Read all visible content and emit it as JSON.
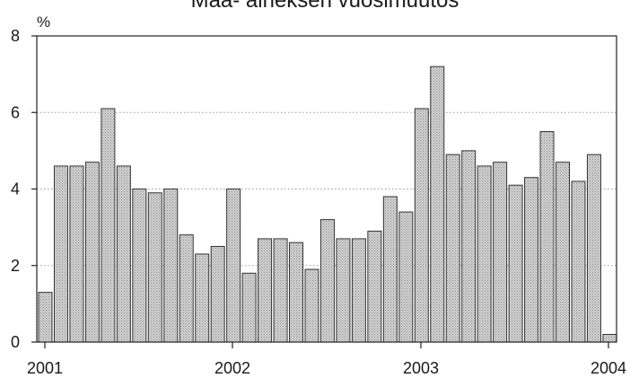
{
  "chart_data": {
    "type": "bar",
    "title": "Maa- aineksen vuosimuutos",
    "ylabel": "%",
    "xlabel": "",
    "ylim": [
      0,
      8
    ],
    "yticks": [
      "0",
      "2",
      "4",
      "6",
      "8"
    ],
    "xticks": [
      "2001",
      "2002",
      "2003",
      "2004"
    ],
    "grid": true,
    "values": [
      1.3,
      4.6,
      4.6,
      4.7,
      6.1,
      4.6,
      4.0,
      3.9,
      4.0,
      2.8,
      2.3,
      2.5,
      4.0,
      1.8,
      2.7,
      2.7,
      2.6,
      1.9,
      3.2,
      2.7,
      2.7,
      2.9,
      3.8,
      3.4,
      6.1,
      7.2,
      4.9,
      5.0,
      4.6,
      4.7,
      4.1,
      4.3,
      5.5,
      4.7,
      4.2,
      4.9,
      0.2
    ]
  },
  "colors": {
    "bar_fill": "#c9c9c9",
    "bar_stroke": "#333333",
    "grid": "#9a9a9a",
    "axis": "#222222"
  }
}
